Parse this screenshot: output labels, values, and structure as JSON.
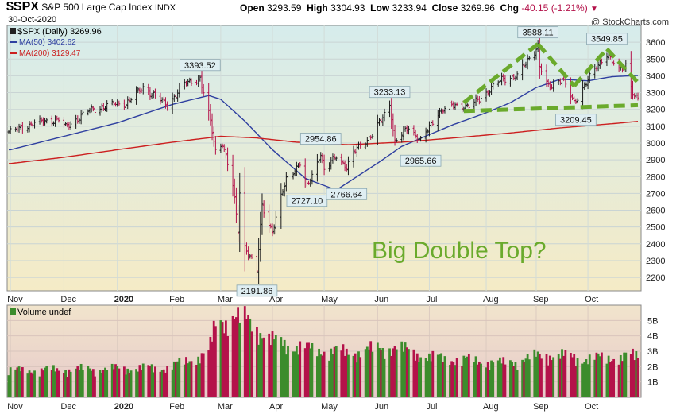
{
  "header": {
    "symbol": "$SPX",
    "name": "S&P 500 Large Cap Index",
    "exchange": "INDX",
    "date": "30-Oct-2020",
    "quote_open_label": "Open",
    "quote_open": "3293.59",
    "quote_high_label": "High",
    "quote_high": "3304.93",
    "quote_low_label": "Low",
    "quote_low": "3233.94",
    "quote_close_label": "Close",
    "quote_close": "3269.96",
    "quote_chg_label": "Chg",
    "quote_chg": "-40.15 (-1.21%)",
    "copyright": "@ StockCharts.com"
  },
  "colors": {
    "price_bg_top": "#d6ecec",
    "price_bg_bottom": "#f5ebc6",
    "volume_bg_top": "#f1e4cc",
    "volume_bg_bottom": "#e7caca",
    "up": "#3c8c2c",
    "down": "#b4124a",
    "ma50": "#2e3fa0",
    "ma200": "#cc1f1f",
    "annotation": "#6aaa2c",
    "label_bg": "#dfeef2"
  },
  "chart_data": [
    {
      "type": "line",
      "title": "$SPX S&P 500 Large Cap Index INDX",
      "annotation_text": "Big Double Top?",
      "legend_position": "top-left",
      "grid": true,
      "x_range": [
        "2019-10-31",
        "2020-10-30"
      ],
      "ylim": [
        2120,
        3700
      ],
      "y_ticks": [
        2200,
        2300,
        2400,
        2500,
        2600,
        2700,
        2800,
        2900,
        3000,
        3100,
        3200,
        3300,
        3400,
        3500,
        3600
      ],
      "x_ticks": [
        {
          "date": "2019-11-01",
          "label": "Nov"
        },
        {
          "date": "2019-12-02",
          "label": "Dec"
        },
        {
          "date": "2020-01-02",
          "label": "2020"
        },
        {
          "date": "2020-02-03",
          "label": "Feb"
        },
        {
          "date": "2020-03-02",
          "label": "Mar"
        },
        {
          "date": "2020-04-01",
          "label": "Apr"
        },
        {
          "date": "2020-05-01",
          "label": "May"
        },
        {
          "date": "2020-06-01",
          "label": "Jun"
        },
        {
          "date": "2020-07-01",
          "label": "Jul"
        },
        {
          "date": "2020-08-03",
          "label": "Aug"
        },
        {
          "date": "2020-09-01",
          "label": "Sep"
        },
        {
          "date": "2020-10-01",
          "label": "Oct"
        }
      ],
      "series": [
        {
          "name": "$SPX (Daily)",
          "last_value": "3269.96",
          "points": [
            [
              "2019-11-01",
              3066
            ],
            [
              "2019-11-15",
              3120
            ],
            [
              "2019-11-29",
              3141
            ],
            [
              "2019-12-03",
              3093
            ],
            [
              "2019-12-16",
              3191
            ],
            [
              "2019-12-31",
              3231
            ],
            [
              "2020-01-07",
              3237
            ],
            [
              "2020-01-17",
              3330
            ],
            [
              "2020-01-31",
              3226
            ],
            [
              "2020-02-10",
              3352
            ],
            [
              "2020-02-19",
              3386
            ],
            [
              "2020-02-25",
              3128
            ],
            [
              "2020-02-28",
              2954
            ],
            [
              "2020-03-03",
              3003
            ],
            [
              "2020-03-09",
              2746
            ],
            [
              "2020-03-12",
              2480
            ],
            [
              "2020-03-13",
              2711
            ],
            [
              "2020-03-16",
              2386
            ],
            [
              "2020-03-23",
              2237
            ],
            [
              "2020-03-26",
              2630
            ],
            [
              "2020-04-01",
              2470
            ],
            [
              "2020-04-09",
              2790
            ],
            [
              "2020-04-17",
              2875
            ],
            [
              "2020-04-21",
              2737
            ],
            [
              "2020-04-29",
              2939
            ],
            [
              "2020-05-01",
              2831
            ],
            [
              "2020-05-08",
              2930
            ],
            [
              "2020-05-14",
              2852
            ],
            [
              "2020-05-20",
              2972
            ],
            [
              "2020-05-29",
              3044
            ],
            [
              "2020-06-08",
              3232
            ],
            [
              "2020-06-11",
              3002
            ],
            [
              "2020-06-19",
              3098
            ],
            [
              "2020-06-26",
              3009
            ],
            [
              "2020-07-06",
              3180
            ],
            [
              "2020-07-15",
              3227
            ],
            [
              "2020-07-24",
              3216
            ],
            [
              "2020-07-31",
              3271
            ],
            [
              "2020-08-12",
              3380
            ],
            [
              "2020-08-21",
              3397
            ],
            [
              "2020-08-28",
              3508
            ],
            [
              "2020-09-02",
              3580
            ],
            [
              "2020-09-03",
              3455
            ],
            [
              "2020-09-08",
              3332
            ],
            [
              "2020-09-16",
              3385
            ],
            [
              "2020-09-23",
              3237
            ],
            [
              "2020-09-30",
              3363
            ],
            [
              "2020-10-12",
              3535
            ],
            [
              "2020-10-19",
              3427
            ],
            [
              "2020-10-23",
              3465
            ],
            [
              "2020-10-28",
              3271
            ],
            [
              "2020-10-30",
              3270
            ]
          ]
        },
        {
          "name": "MA(50)",
          "last_value": "3402.62",
          "points": [
            [
              "2019-11-01",
              2960
            ],
            [
              "2019-12-02",
              3040
            ],
            [
              "2020-01-02",
              3120
            ],
            [
              "2020-02-03",
              3230
            ],
            [
              "2020-02-24",
              3283
            ],
            [
              "2020-03-02",
              3260
            ],
            [
              "2020-03-16",
              3130
            ],
            [
              "2020-04-01",
              2960
            ],
            [
              "2020-04-20",
              2790
            ],
            [
              "2020-05-08",
              2720
            ],
            [
              "2020-05-20",
              2800
            ],
            [
              "2020-06-01",
              2880
            ],
            [
              "2020-06-15",
              2980
            ],
            [
              "2020-07-01",
              3050
            ],
            [
              "2020-07-15",
              3110
            ],
            [
              "2020-08-03",
              3180
            ],
            [
              "2020-08-17",
              3240
            ],
            [
              "2020-09-01",
              3330
            ],
            [
              "2020-09-15",
              3380
            ],
            [
              "2020-10-01",
              3370
            ],
            [
              "2020-10-15",
              3395
            ],
            [
              "2020-10-30",
              3402
            ]
          ]
        },
        {
          "name": "MA(200)",
          "last_value": "3129.47",
          "points": [
            [
              "2019-11-01",
              2878
            ],
            [
              "2019-12-02",
              2915
            ],
            [
              "2020-01-02",
              2960
            ],
            [
              "2020-02-03",
              3005
            ],
            [
              "2020-03-02",
              3040
            ],
            [
              "2020-03-23",
              3030
            ],
            [
              "2020-04-15",
              3005
            ],
            [
              "2020-05-15",
              2990
            ],
            [
              "2020-06-15",
              3005
            ],
            [
              "2020-07-15",
              3030
            ],
            [
              "2020-08-17",
              3060
            ],
            [
              "2020-09-15",
              3090
            ],
            [
              "2020-10-15",
              3115
            ],
            [
              "2020-10-30",
              3129
            ]
          ]
        }
      ],
      "annotations": [
        {
          "text": "3393.52",
          "date": "2020-02-19",
          "value": 3393.52
        },
        {
          "text": "2191.86",
          "date": "2020-03-23",
          "value": 2191.86
        },
        {
          "text": "2954.86",
          "date": "2020-04-29",
          "value": 2954.86
        },
        {
          "text": "2727.10",
          "date": "2020-04-21",
          "value": 2727.1
        },
        {
          "text": "2766.64",
          "date": "2020-05-14",
          "value": 2766.64
        },
        {
          "text": "3233.13",
          "date": "2020-06-08",
          "value": 3233.13
        },
        {
          "text": "2965.66",
          "date": "2020-06-26",
          "value": 2965.66
        },
        {
          "text": "3588.11",
          "date": "2020-09-02",
          "value": 3588.11
        },
        {
          "text": "3209.45",
          "date": "2020-09-24",
          "value": 3209.45
        },
        {
          "text": "3549.85",
          "date": "2020-10-12",
          "value": 3549.85
        }
      ],
      "pattern_lines": [
        {
          "name": "left-top",
          "from": [
            "2020-07-21",
            3240
          ],
          "to": [
            "2020-09-02",
            3590
          ]
        },
        {
          "name": "left-down",
          "from": [
            "2020-09-02",
            3590
          ],
          "to": [
            "2020-09-23",
            3340
          ]
        },
        {
          "name": "right-up",
          "from": [
            "2020-09-23",
            3340
          ],
          "to": [
            "2020-10-12",
            3560
          ]
        },
        {
          "name": "right-down",
          "from": [
            "2020-10-12",
            3560
          ],
          "to": [
            "2020-10-30",
            3360
          ]
        },
        {
          "name": "neckline",
          "from": [
            "2020-07-21",
            3190
          ],
          "to": [
            "2020-10-30",
            3225
          ]
        }
      ]
    },
    {
      "type": "bar",
      "legend": "Volume undef",
      "ylim": [
        0,
        6000000000
      ],
      "y_ticks": [
        {
          "value": 1000000000,
          "label": "1B"
        },
        {
          "value": 2000000000,
          "label": "2B"
        },
        {
          "value": 3000000000,
          "label": "3B"
        },
        {
          "value": 4000000000,
          "label": "4B"
        },
        {
          "value": 5000000000,
          "label": "5B"
        }
      ],
      "volume_profile": [
        [
          "2019-11-01",
          1.8
        ],
        [
          "2020-01-31",
          2.0
        ],
        [
          "2020-02-24",
          3.0
        ],
        [
          "2020-02-28",
          4.9
        ],
        [
          "2020-03-09",
          5.5
        ],
        [
          "2020-03-20",
          5.0
        ],
        [
          "2020-04-01",
          3.8
        ],
        [
          "2020-04-20",
          3.3
        ],
        [
          "2020-05-15",
          3.0
        ],
        [
          "2020-06-11",
          3.4
        ],
        [
          "2020-07-01",
          2.7
        ],
        [
          "2020-08-14",
          2.3
        ],
        [
          "2020-09-08",
          2.9
        ],
        [
          "2020-10-01",
          2.6
        ],
        [
          "2020-10-30",
          2.8
        ]
      ]
    }
  ]
}
